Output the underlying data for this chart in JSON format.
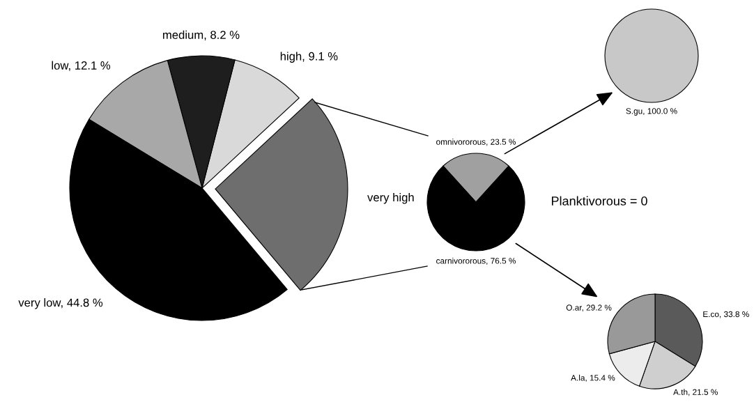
{
  "chart_data": [
    {
      "type": "pie",
      "categories": [
        "very high",
        "high",
        "medium",
        "low",
        "very low"
      ],
      "values": [
        25.8,
        9.1,
        8.2,
        12.1,
        44.8
      ],
      "colors": [
        "#6e6e6e",
        "#d9d9d9",
        "#1e1e1e",
        "#a8a8a8",
        "#000000"
      ],
      "value_labels": [
        null,
        "9.1 %",
        "8.2 %",
        "12.1 %",
        "44.8 %"
      ]
    },
    {
      "type": "pie",
      "categories": [
        "omnivororous",
        "carnivororous"
      ],
      "values": [
        23.5,
        76.5
      ],
      "colors": [
        "#a0a0a0",
        "#000000"
      ],
      "value_labels": [
        "23.5 %",
        "76.5 %"
      ],
      "annotations": [
        "Planktivorous = 0"
      ]
    },
    {
      "type": "pie",
      "categories": [
        "S.gu"
      ],
      "values": [
        100.0
      ],
      "colors": [
        "#c8c8c8"
      ],
      "value_labels": [
        "100.0 %"
      ]
    },
    {
      "type": "pie",
      "categories": [
        "E.co",
        "A.th",
        "A.la",
        "O.ar"
      ],
      "values": [
        33.8,
        21.5,
        15.4,
        29.2
      ],
      "colors": [
        "#5a5a5a",
        "#cfcfcf",
        "#ececec",
        "#999999"
      ],
      "value_labels": [
        "33.8 %",
        "21.5 %",
        "15.4 %",
        "29.2 %"
      ]
    }
  ]
}
